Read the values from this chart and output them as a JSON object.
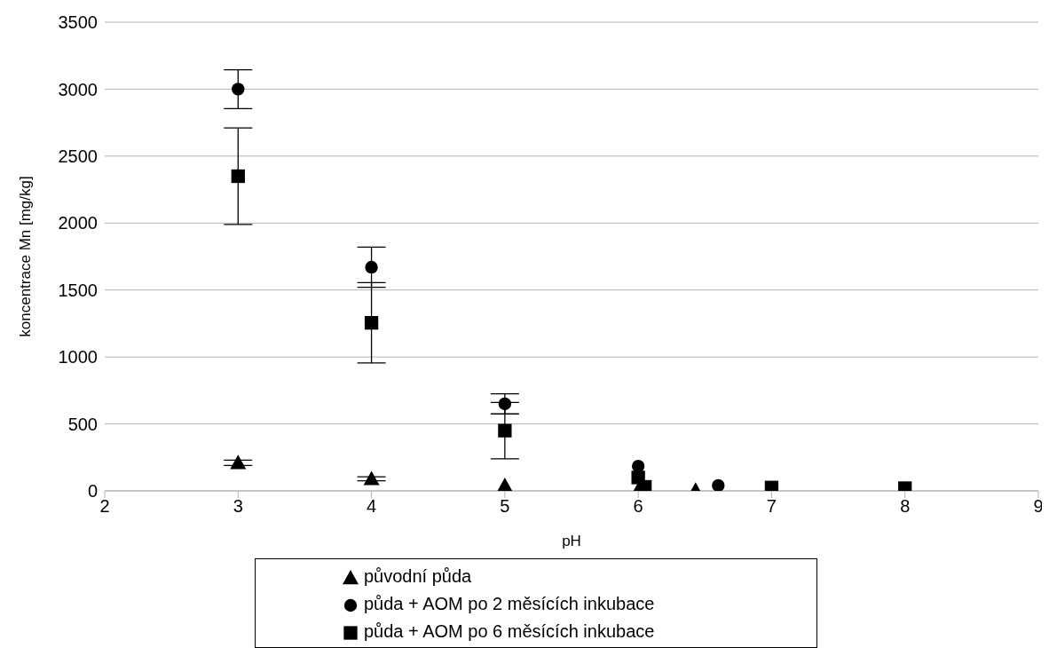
{
  "chart_data": {
    "type": "scatter",
    "xlabel": "pH",
    "ylabel": "koncentrace Mn [mg/kg]",
    "xlim": [
      2,
      9
    ],
    "xticks": [
      2,
      3,
      4,
      5,
      6,
      7,
      8,
      9
    ],
    "ylim": [
      0,
      3500
    ],
    "yticks": [
      0,
      500,
      1000,
      1500,
      2000,
      2500,
      3000,
      3500
    ],
    "grid": "y",
    "legend": "bottom",
    "series": [
      {
        "name": "původní půda",
        "color": "#000000",
        "marker": "triangle",
        "x": [
          3,
          4,
          5,
          6,
          6.43
        ],
        "values": [
          210,
          90,
          40,
          5,
          5
        ],
        "errors": [
          20,
          15,
          null,
          null,
          null
        ]
      },
      {
        "name": "půda + AOM po 2 měsících inkubace",
        "color": "#000000",
        "marker": "circle",
        "x": [
          3,
          4,
          5,
          6,
          6.6
        ],
        "values": [
          3000,
          1670,
          650,
          185,
          40
        ],
        "errors": [
          145,
          150,
          75,
          null,
          null
        ]
      },
      {
        "name": "půda + AOM po 6 měsících inkubace",
        "color": "#000000",
        "marker": "square",
        "x": [
          3,
          4,
          5,
          6,
          6.05,
          7,
          8
        ],
        "values": [
          2350,
          1255,
          450,
          100,
          30,
          25,
          20
        ],
        "errors": [
          360,
          300,
          210,
          null,
          null,
          null,
          null
        ]
      }
    ]
  }
}
